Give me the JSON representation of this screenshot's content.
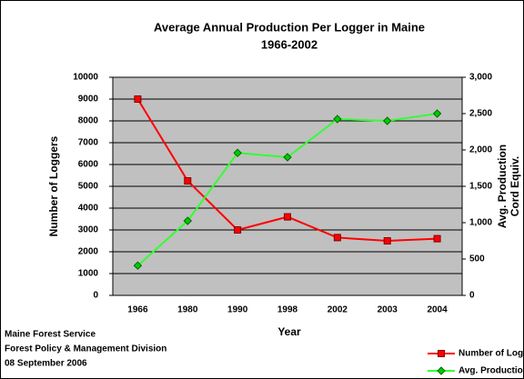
{
  "chart_data": {
    "type": "line",
    "title": [
      "Average Annual Production Per Logger in Maine",
      "1966-2002"
    ],
    "x_label": "Year",
    "y_label": "Number of Loggers",
    "y2_label": [
      "Avg. Production",
      "Cord Equiv."
    ],
    "annotations": [
      "Maine Forest Service",
      "Forest Policy & Management Division",
      "08 September 2006"
    ],
    "categories": [
      "1966",
      "1980",
      "1990",
      "1998",
      "2002",
      "2003",
      "2004"
    ],
    "series": [
      {
        "name": "Number of Loggers",
        "color": "#ff0000",
        "values": [
          9000,
          5250,
          3000,
          3600,
          2650,
          2500,
          2600
        ]
      },
      {
        "name": "Avg. Production",
        "color": "#33ff33",
        "axis": "y2",
        "values": [
          410,
          1025,
          1960,
          1900,
          2425,
          2400,
          2500
        ]
      }
    ],
    "ylim": [
      0,
      10000
    ],
    "yticks": [
      0,
      1000,
      2000,
      3000,
      4000,
      5000,
      6000,
      7000,
      8000,
      9000,
      10000
    ],
    "y2lim": [
      0,
      3000
    ],
    "y2ticks": [
      0,
      500,
      {
        "value": 1000,
        "label": "1,000"
      },
      {
        "value": 1500,
        "label": "1,500"
      },
      {
        "value": 2000,
        "label": "2,000"
      },
      {
        "value": 2500,
        "label": "2,500"
      },
      {
        "value": 3000,
        "label": "3,000"
      }
    ],
    "grid": true,
    "legend": "lower right"
  }
}
